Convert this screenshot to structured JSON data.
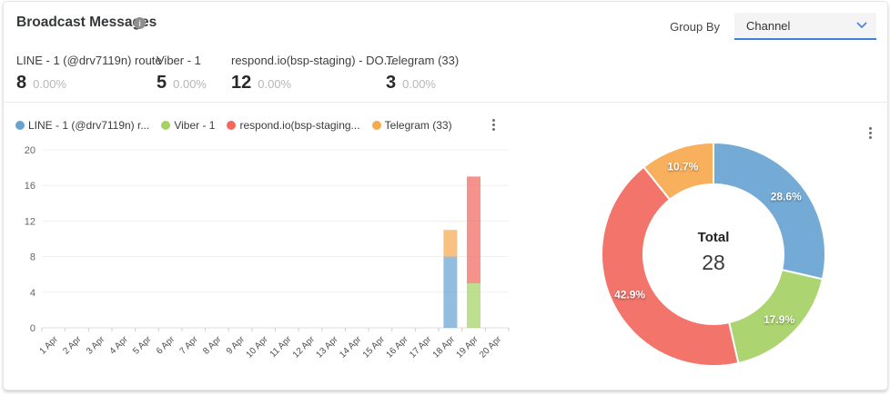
{
  "header": {
    "title": "Broadcast Messages",
    "group_by_label": "Group By",
    "group_by_value": "Channel",
    "accent_color": "#3f7fd6"
  },
  "icons": {
    "info_glyph": "i",
    "chevron_down": "▾",
    "kebab": "⋮"
  },
  "stats": [
    {
      "label": "LINE - 1 (@drv7119n) route",
      "value": "8",
      "percent": "0.00%"
    },
    {
      "label": "Viber - 1",
      "value": "5",
      "percent": "0.00%"
    },
    {
      "label": "respond.io(bsp-staging) - DO...",
      "value": "12",
      "percent": "0.00%"
    },
    {
      "label": "Telegram (33)",
      "value": "3",
      "percent": "0.00%"
    }
  ],
  "legend": [
    {
      "label": "LINE - 1 (@drv7119n) r...",
      "color": "#68a4d2"
    },
    {
      "label": "Viber - 1",
      "color": "#a5d165"
    },
    {
      "label": "respond.io(bsp-staging...",
      "color": "#f1685e"
    },
    {
      "label": "Telegram (33)",
      "color": "#f7a94e"
    }
  ],
  "chart_data": [
    {
      "type": "bar",
      "stacked": true,
      "grid": true,
      "legend_position": "top",
      "ylim": [
        0,
        20
      ],
      "yticks": [
        0,
        4,
        8,
        12,
        16,
        20
      ],
      "categories": [
        "1 Apr",
        "2 Apr",
        "3 Apr",
        "4 Apr",
        "5 Apr",
        "6 Apr",
        "7 Apr",
        "8 Apr",
        "9 Apr",
        "10 Apr",
        "11 Apr",
        "12 Apr",
        "13 Apr",
        "14 Apr",
        "15 Apr",
        "16 Apr",
        "17 Apr",
        "18 Apr",
        "19 Apr",
        "20 Apr"
      ],
      "series": [
        {
          "name": "LINE - 1 (@drv7119n) route",
          "color": "#68a4d2",
          "values": [
            0,
            0,
            0,
            0,
            0,
            0,
            0,
            0,
            0,
            0,
            0,
            0,
            0,
            0,
            0,
            0,
            0,
            8,
            0,
            0
          ]
        },
        {
          "name": "Viber - 1",
          "color": "#a5d165",
          "values": [
            0,
            0,
            0,
            0,
            0,
            0,
            0,
            0,
            0,
            0,
            0,
            0,
            0,
            0,
            0,
            0,
            0,
            0,
            5,
            0
          ]
        },
        {
          "name": "respond.io(bsp-staging) - DO...",
          "color": "#f1685e",
          "values": [
            0,
            0,
            0,
            0,
            0,
            0,
            0,
            0,
            0,
            0,
            0,
            0,
            0,
            0,
            0,
            0,
            0,
            0,
            12,
            0
          ]
        },
        {
          "name": "Telegram (33)",
          "color": "#f7a94e",
          "values": [
            0,
            0,
            0,
            0,
            0,
            0,
            0,
            0,
            0,
            0,
            0,
            0,
            0,
            0,
            0,
            0,
            0,
            3,
            0,
            0
          ]
        }
      ]
    },
    {
      "type": "pie",
      "donut": true,
      "center_label": "Total",
      "center_value": "28",
      "slices": [
        {
          "name": "LINE - 1 (@drv7119n) route",
          "value": 8,
          "percent_label": "28.6%",
          "color": "#68a4d2"
        },
        {
          "name": "Viber - 1",
          "value": 5,
          "percent_label": "17.9%",
          "color": "#a5d165"
        },
        {
          "name": "respond.io(bsp-staging) - DO...",
          "value": 12,
          "percent_label": "42.9%",
          "color": "#f1685e"
        },
        {
          "name": "Telegram (33)",
          "value": 3,
          "percent_label": "10.7%",
          "color": "#f7a94e"
        }
      ]
    }
  ]
}
